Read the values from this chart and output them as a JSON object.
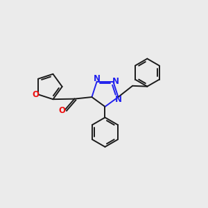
{
  "background_color": "#ebebeb",
  "bond_color": "#1a1a1a",
  "nitrogen_color": "#2020ee",
  "oxygen_color": "#ee1111",
  "line_width": 1.4,
  "figsize": [
    3.0,
    3.0
  ],
  "dpi": 100,
  "xlim": [
    0,
    10
  ],
  "ylim": [
    0,
    10
  ]
}
